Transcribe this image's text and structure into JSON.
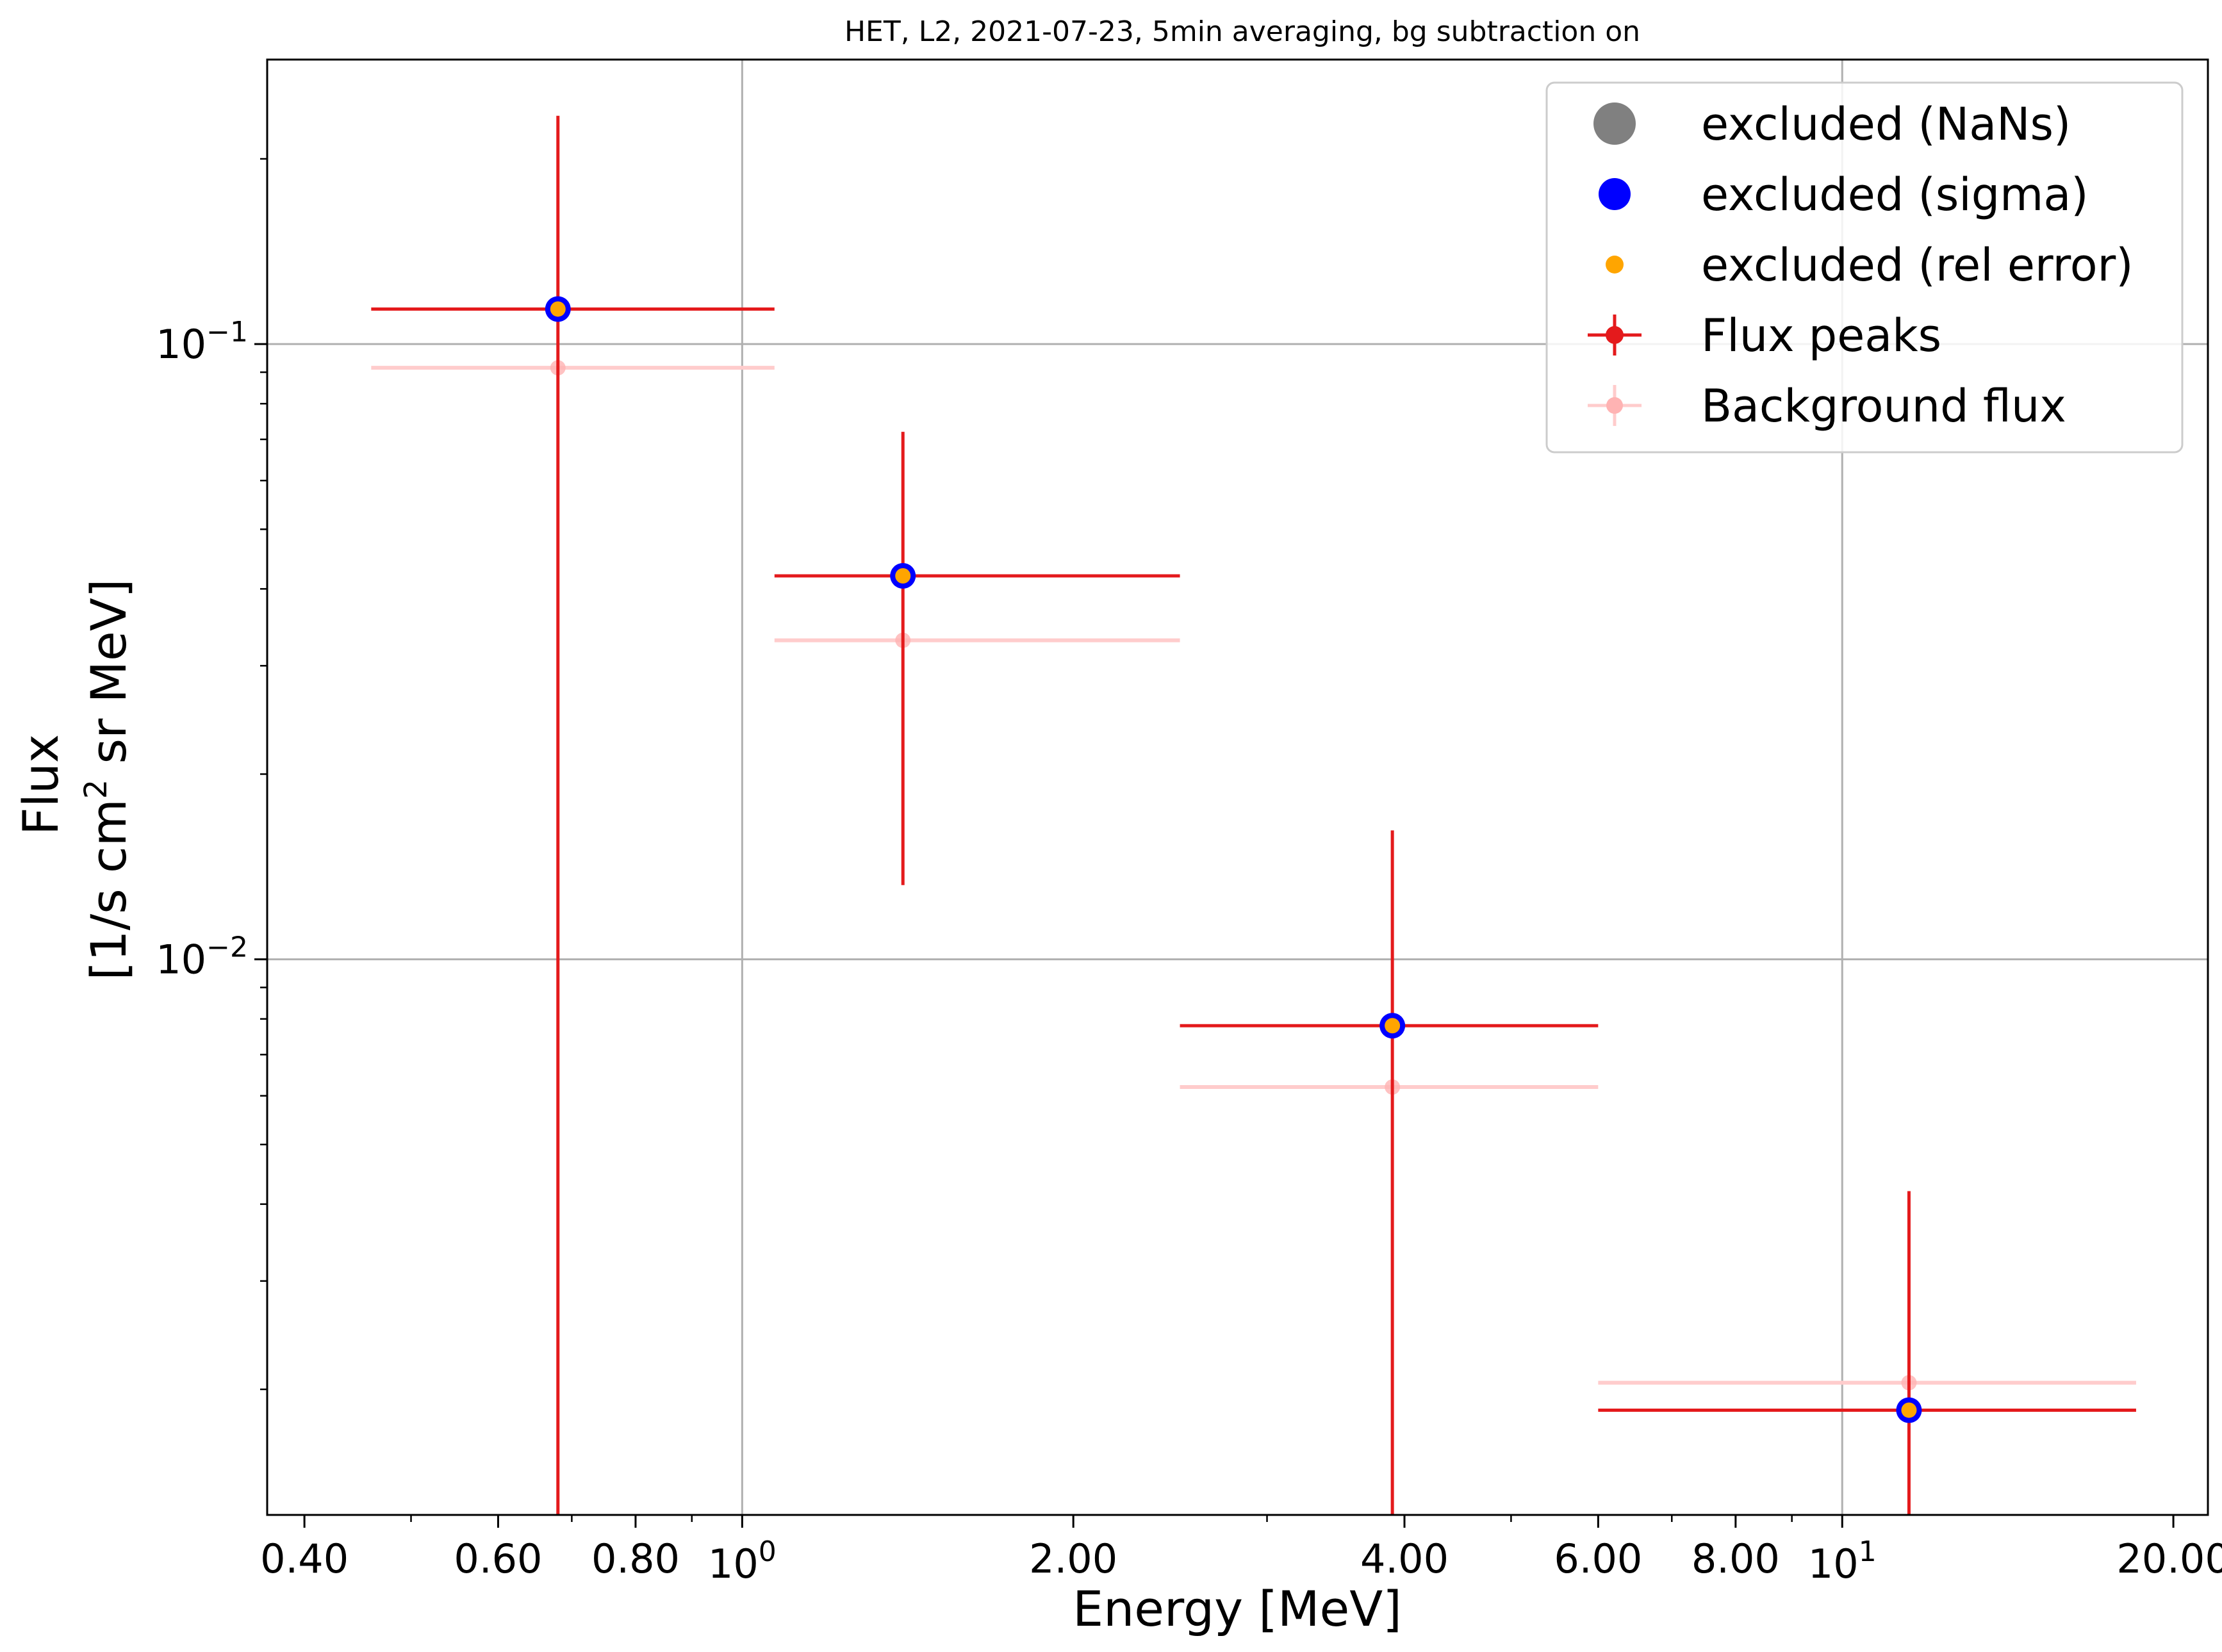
{
  "chart_data": {
    "type": "scatter",
    "title": "HET, L2, 2021-07-23, 5min averaging, bg subtraction on",
    "xlabel": "Energy [MeV]",
    "ylabel_line1": "Flux",
    "ylabel_line2_prefix": "[1/s cm",
    "ylabel_line2_sup": "2",
    "ylabel_line2_suffix": " sr MeV]",
    "xscale": "log",
    "yscale": "log",
    "xlim": [
      0.37,
      21.5
    ],
    "ylim": [
      0.00125,
      0.29
    ],
    "grid": true,
    "legend_position": "top-right",
    "x_ticks": [
      {
        "value": 0.4,
        "label": "0.40"
      },
      {
        "value": 0.6,
        "label": "0.60"
      },
      {
        "value": 0.8,
        "label": "0.80"
      },
      {
        "value": 2.0,
        "label": "2.00"
      },
      {
        "value": 4.0,
        "label": "4.00"
      },
      {
        "value": 6.0,
        "label": "6.00"
      },
      {
        "value": 8.0,
        "label": "8.00"
      },
      {
        "value": 20.0,
        "label": "20.00"
      }
    ],
    "x_decade_ticks": [
      {
        "value": 1,
        "base": "10",
        "exp": "0"
      },
      {
        "value": 10,
        "base": "10",
        "exp": "1"
      }
    ],
    "y_decade_ticks": [
      {
        "value": 0.1,
        "base": "10",
        "exp": "−1"
      },
      {
        "value": 0.01,
        "base": "10",
        "exp": "−2"
      }
    ],
    "series": [
      {
        "name": "Flux peaks",
        "color": "#e41a1c",
        "points": [
          {
            "x": 0.68,
            "xerr": [
              0.46,
              1.07
            ],
            "y": 0.114,
            "yerr": [
              0.00125,
              0.235
            ]
          },
          {
            "x": 1.4,
            "xerr": [
              1.07,
              2.5
            ],
            "y": 0.042,
            "yerr": [
              0.0132,
              0.072
            ]
          },
          {
            "x": 3.9,
            "xerr": [
              2.5,
              6.0
            ],
            "y": 0.0078,
            "yerr": [
              0.00125,
              0.0162
            ]
          },
          {
            "x": 11.5,
            "xerr": [
              6.0,
              18.5
            ],
            "y": 0.00185,
            "yerr": [
              0.00125,
              0.0042
            ]
          }
        ]
      },
      {
        "name": "Background flux",
        "color": "#ffcccc",
        "points": [
          {
            "x": 0.68,
            "xerr": [
              0.46,
              1.07
            ],
            "y": 0.0915
          },
          {
            "x": 1.4,
            "xerr": [
              1.07,
              2.5
            ],
            "y": 0.033
          },
          {
            "x": 3.9,
            "xerr": [
              2.5,
              6.0
            ],
            "y": 0.0062
          },
          {
            "x": 11.5,
            "xerr": [
              6.0,
              18.5
            ],
            "y": 0.00205
          }
        ]
      },
      {
        "name": "excluded (sigma)",
        "color": "#0000ff",
        "points": [
          {
            "x": 0.68,
            "y": 0.114
          },
          {
            "x": 1.4,
            "y": 0.042
          },
          {
            "x": 3.9,
            "y": 0.0078
          },
          {
            "x": 11.5,
            "y": 0.00185
          }
        ]
      },
      {
        "name": "excluded (rel error)",
        "color": "#ffa500",
        "points": [
          {
            "x": 0.68,
            "y": 0.114
          },
          {
            "x": 1.4,
            "y": 0.042
          },
          {
            "x": 3.9,
            "y": 0.0078
          },
          {
            "x": 11.5,
            "y": 0.00185
          }
        ]
      },
      {
        "name": "excluded (NaNs)",
        "color": "#808080",
        "points": []
      }
    ],
    "legend": [
      {
        "label": "excluded (NaNs)",
        "marker": "big-dot",
        "color": "#808080"
      },
      {
        "label": "excluded (sigma)",
        "marker": "mid-dot",
        "color": "#0000ff"
      },
      {
        "label": "excluded (rel error)",
        "marker": "small-dot",
        "color": "#ffa500"
      },
      {
        "label": "Flux peaks",
        "marker": "errorbar",
        "color": "#e41a1c"
      },
      {
        "label": "Background flux",
        "marker": "errorbar-faint",
        "color": "#ffcccc"
      }
    ]
  }
}
